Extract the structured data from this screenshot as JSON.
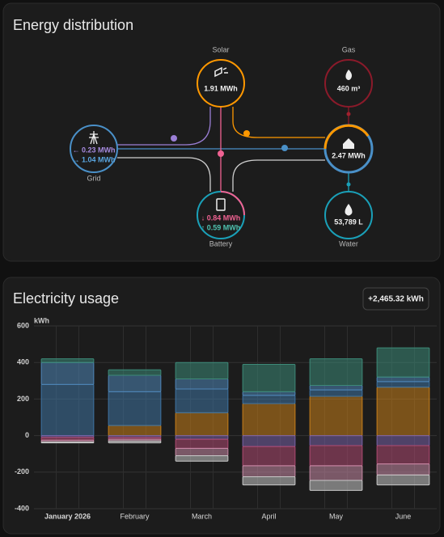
{
  "distribution": {
    "title": "Energy distribution",
    "solar": {
      "label": "Solar",
      "value": "1.91 MWh"
    },
    "gas": {
      "label": "Gas",
      "value": "460 m³"
    },
    "grid": {
      "label": "Grid",
      "returned": "← 0.23 MWh",
      "consumed": "→ 1.04 MWh"
    },
    "home": {
      "value": "2.47 MWh"
    },
    "battery": {
      "label": "Battery",
      "charged": "↓ 0.84 MWh",
      "discharged": "↑ 0.59 MWh"
    },
    "water": {
      "label": "Water",
      "value": "53,789 L"
    }
  },
  "chart_data": {
    "type": "bar",
    "stacked": true,
    "title": "Electricity usage",
    "total": "+2,465.32 kWh",
    "y_label": "kWh",
    "categories": [
      "January 2026",
      "February",
      "March",
      "April",
      "May",
      "June"
    ],
    "ylim": [
      -400,
      600
    ],
    "yticks": [
      -400,
      -200,
      0,
      200,
      400,
      600
    ],
    "grid": true,
    "series": [
      {
        "color": "#c8801a",
        "values": [
          0,
          55,
          125,
          175,
          215,
          265
        ]
      },
      {
        "color": "#3f74a3",
        "values": [
          280,
          185,
          130,
          45,
          35,
          30
        ]
      },
      {
        "color": "#4f86b8",
        "values": [
          120,
          90,
          55,
          20,
          25,
          25
        ]
      },
      {
        "color": "#3d8a78",
        "values": [
          20,
          30,
          90,
          150,
          145,
          160
        ]
      },
      {
        "color": "#7a62a8",
        "values": [
          -10,
          -10,
          -20,
          -60,
          -55,
          -55
        ]
      },
      {
        "color": "#b04a72",
        "values": [
          -15,
          -10,
          -50,
          -105,
          -110,
          -100
        ]
      },
      {
        "color": "#c88aa6",
        "values": [
          -10,
          -10,
          -40,
          -60,
          -80,
          -60
        ]
      },
      {
        "color": "#c8c8c8",
        "values": [
          -5,
          -10,
          -30,
          -45,
          -55,
          -55
        ]
      }
    ]
  }
}
